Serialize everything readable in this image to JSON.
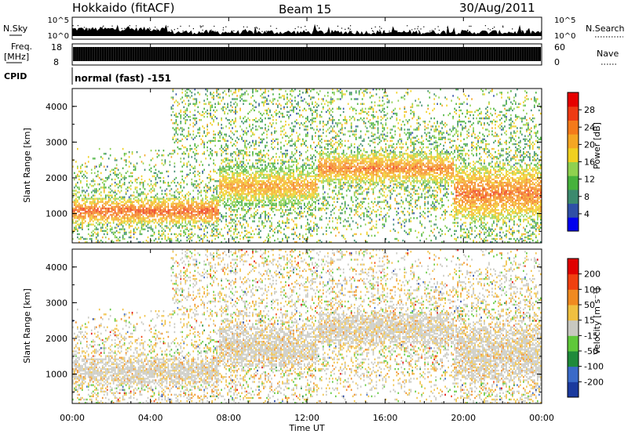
{
  "header": {
    "radar": "Hokkaido (fitACF)",
    "beam": "Beam 15",
    "date": "30/Aug/2011"
  },
  "top_panels": {
    "nsky": {
      "label": "N.Sky",
      "ticks": [
        "10^5",
        "10^0"
      ]
    },
    "nsearch": {
      "label": "N.Search",
      "ticks": [
        "10^5",
        "10^0"
      ]
    },
    "freq": {
      "label_line1": "Freq.",
      "label_line2": "[MHz]",
      "ticks": [
        "18",
        "8"
      ]
    },
    "nave": {
      "label": "Nave",
      "ticks": [
        "60",
        "0"
      ]
    },
    "cpid": {
      "label": "CPID",
      "value": "normal (fast) -151"
    }
  },
  "chart_data": [
    {
      "type": "heatmap",
      "name": "power",
      "ylabel": "Slant Range [km]",
      "ylim": [
        180,
        4500
      ],
      "yticks": [
        "1000",
        "2000",
        "3000",
        "4000"
      ],
      "ytick_values": [
        1000,
        2000,
        3000,
        4000
      ],
      "colorbar": {
        "label": "Power [dB]",
        "ticks": [
          "4",
          "8",
          "12",
          "16",
          "20",
          "24",
          "28"
        ],
        "range": [
          0,
          32
        ],
        "colors": [
          "#0000ee",
          "#2f4fa6",
          "#3c8a6e",
          "#46b23c",
          "#8fd14f",
          "#f0d020",
          "#f5a623",
          "#f47a1a",
          "#ee3a14",
          "#e60000"
        ]
      },
      "description_bands": [
        {
          "x_hours": [
            0,
            7.5
          ],
          "range_km": [
            700,
            1400
          ],
          "level_db": 26
        },
        {
          "x_hours": [
            7.5,
            12.5
          ],
          "range_km": [
            1200,
            2300
          ],
          "level_db": 22
        },
        {
          "x_hours": [
            12.5,
            19.5
          ],
          "range_km": [
            1800,
            2700
          ],
          "level_db": 24
        },
        {
          "x_hours": [
            19.5,
            24
          ],
          "range_km": [
            800,
            2300
          ],
          "level_db": 25
        }
      ]
    },
    {
      "type": "heatmap",
      "name": "velocity",
      "ylabel": "Slant Range [km]",
      "ylim": [
        180,
        4500
      ],
      "yticks": [
        "1000",
        "2000",
        "3000",
        "4000"
      ],
      "ytick_values": [
        1000,
        2000,
        3000,
        4000
      ],
      "xlabel": "Time UT",
      "xticks": [
        "00:00",
        "04:00",
        "08:00",
        "12:00",
        "16:00",
        "20:00",
        "00:00"
      ],
      "xtick_hours": [
        0,
        4,
        8,
        12,
        16,
        20,
        24
      ],
      "colorbar": {
        "label": "Velocity [m s⁻¹]",
        "ticks": [
          "200",
          "100",
          "50",
          "15",
          "-15",
          "-50",
          "-100",
          "-200"
        ],
        "colors": [
          "#1b3a9e",
          "#3a6ac8",
          "#1f8a3a",
          "#5fc83a",
          "#c8c8c0",
          "#f0c040",
          "#f08a20",
          "#f04010",
          "#e00000"
        ]
      }
    }
  ]
}
